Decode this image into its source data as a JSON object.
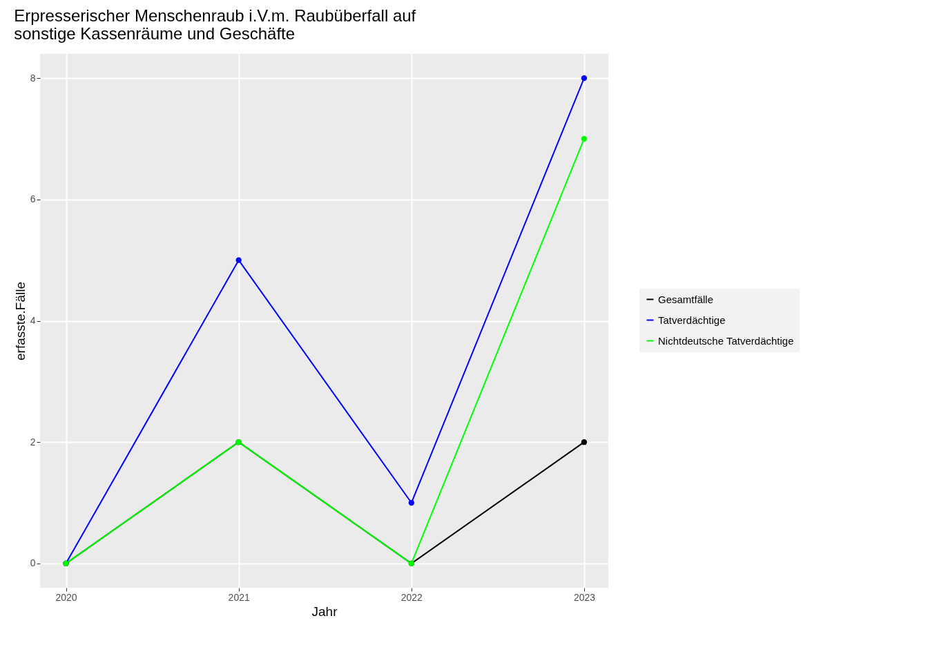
{
  "chart_data": {
    "type": "line",
    "title": "Erpresserischer Menschenraub i.V.m. Raubüberfall auf\nsonstige Kassenräume und Geschäfte",
    "xlabel": "Jahr",
    "ylabel": "erfasste.Fälle",
    "x": [
      2020,
      2021,
      2022,
      2023
    ],
    "series": [
      {
        "name": "Gesamtfälle",
        "color": "#000000",
        "values": [
          0,
          2,
          0,
          2
        ]
      },
      {
        "name": "Tatverdächtige",
        "color": "#0000ff",
        "values": [
          0,
          5,
          1,
          8
        ]
      },
      {
        "name": "Nichtdeutsche Tatverdächtige",
        "color": "#00ff00",
        "values": [
          0,
          2,
          0,
          7
        ]
      }
    ],
    "xlim": [
      2019.85,
      2023.14
    ],
    "xticks": [
      2020,
      2021,
      2022,
      2023
    ],
    "ylim": [
      -0.4,
      8.4
    ],
    "yticks": [
      0,
      2,
      4,
      6,
      8
    ],
    "grid": true,
    "legend": "right",
    "marker": "circle",
    "line_style": "solid"
  }
}
